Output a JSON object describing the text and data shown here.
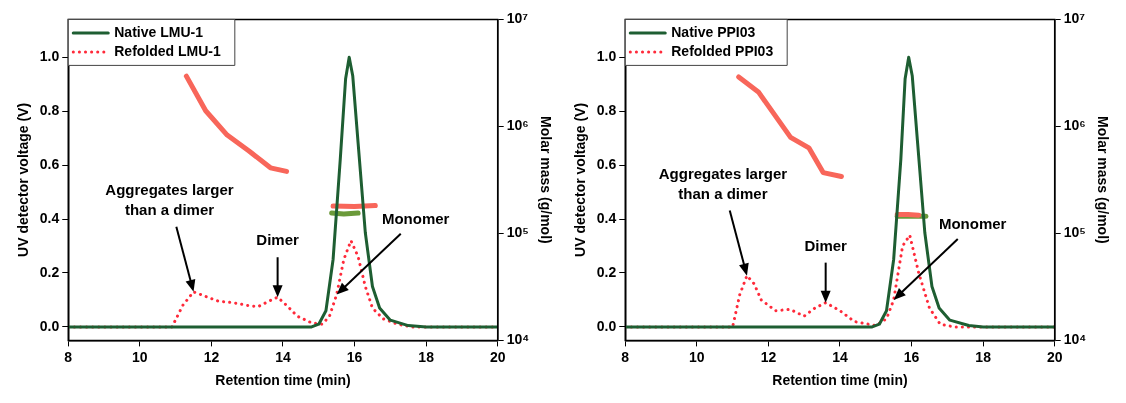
{
  "chart_data": [
    {
      "type": "line",
      "xlabel": "Retention time (min)",
      "ylabel": "UV detector voltage (V)",
      "y2label": "Molar mass (g/mol)",
      "xlim": [
        8,
        20
      ],
      "xticks": [
        8,
        10,
        12,
        14,
        16,
        18,
        20
      ],
      "ylim": [
        -0.05,
        1.14
      ],
      "yticks": [
        {
          "value": 0,
          "label": "0.0"
        },
        {
          "value": 0.2,
          "label": "0.2"
        },
        {
          "value": 0.4,
          "label": "0.4"
        },
        {
          "value": 0.6,
          "label": "0.6"
        },
        {
          "value": 0.8,
          "label": "0.8"
        },
        {
          "value": 1,
          "label": "1.0"
        }
      ],
      "y2lim": [
        10000,
        10000000
      ],
      "y2ticks": [
        {
          "value": 10000,
          "label": "10⁴"
        },
        {
          "value": 100000,
          "label": "10⁵"
        },
        {
          "value": 1000000,
          "label": "10⁶"
        },
        {
          "value": 10000000,
          "label": "10⁷"
        }
      ],
      "log": "y2",
      "legend": "top left",
      "marker": "none",
      "series": [
        {
          "name": "Native LMU-1",
          "color": "#1e5e32",
          "line_style": "solid",
          "x": [
            8,
            14.8,
            15.0,
            15.2,
            15.4,
            15.6,
            15.75,
            15.85,
            15.95,
            16.1,
            16.3,
            16.5,
            16.7,
            17.0,
            17.5,
            18,
            20
          ],
          "values": [
            0,
            0,
            0.01,
            0.06,
            0.25,
            0.62,
            0.92,
            1.0,
            0.93,
            0.68,
            0.35,
            0.15,
            0.07,
            0.025,
            0.005,
            0,
            0
          ]
        },
        {
          "name": "Refolded LMU-1",
          "color": "#ff2a3a",
          "line_style": "dotted",
          "x": [
            8,
            10.9,
            11.2,
            11.5,
            11.8,
            12.2,
            12.6,
            13.0,
            13.3,
            13.6,
            13.85,
            14.1,
            14.4,
            14.8,
            15.1,
            15.3,
            15.5,
            15.7,
            15.9,
            16.1,
            16.3,
            16.5,
            16.8,
            17.2,
            17.6,
            20
          ],
          "values": [
            0,
            0,
            0.08,
            0.13,
            0.115,
            0.095,
            0.09,
            0.08,
            0.075,
            0.095,
            0.11,
            0.08,
            0.04,
            0.015,
            0.01,
            0.04,
            0.12,
            0.25,
            0.32,
            0.26,
            0.15,
            0.07,
            0.03,
            0.01,
            0,
            0
          ]
        },
        {
          "color": "#f8665a",
          "axis": "y2",
          "line_style": "solid",
          "x": [
            11.3,
            11.84,
            12.44,
            13.05,
            13.65,
            14.1
          ],
          "values": [
            2950000,
            1400000,
            830000,
            590000,
            410000,
            380000
          ]
        },
        {
          "color": "#f8665a",
          "axis": "y2",
          "line_style": "solid",
          "x": [
            15.4,
            16.0,
            16.58
          ],
          "values": [
            180000,
            178000,
            182000
          ]
        },
        {
          "color": "#6b9a3a",
          "axis": "y2",
          "line_style": "solid",
          "x": [
            15.36,
            15.7,
            16.1
          ],
          "values": [
            155000,
            152000,
            155000
          ]
        }
      ],
      "annotations": [
        {
          "text": "Aggregates larger than a dimer",
          "x": 11.5,
          "y": 0.13
        },
        {
          "text": "Dimer",
          "x": 13.85,
          "y": 0.11
        },
        {
          "text": "Monomer",
          "x": 15.5,
          "y": 0.12
        }
      ]
    },
    {
      "type": "line",
      "xlabel": "Retention time (min)",
      "ylabel": "UV detector voltage (V)",
      "y2label": "Molar mass (g/mol)",
      "xlim": [
        8,
        20
      ],
      "xticks": [
        8,
        10,
        12,
        14,
        16,
        18,
        20
      ],
      "ylim": [
        -0.05,
        1.14
      ],
      "yticks": [
        {
          "value": 0,
          "label": "0.0"
        },
        {
          "value": 0.2,
          "label": "0.2"
        },
        {
          "value": 0.4,
          "label": "0.4"
        },
        {
          "value": 0.6,
          "label": "0.6"
        },
        {
          "value": 0.8,
          "label": "0.8"
        },
        {
          "value": 1,
          "label": "1.0"
        }
      ],
      "y2lim": [
        10000,
        10000000
      ],
      "y2ticks": [
        {
          "value": 10000,
          "label": "10⁴"
        },
        {
          "value": 100000,
          "label": "10⁵"
        },
        {
          "value": 1000000,
          "label": "10⁶"
        },
        {
          "value": 10000000,
          "label": "10⁷"
        }
      ],
      "log": "y2",
      "legend": "top left",
      "marker": "none",
      "series": [
        {
          "name": "Native PPI03",
          "color": "#1e5e32",
          "line_style": "solid",
          "x": [
            8,
            14.9,
            15.1,
            15.3,
            15.5,
            15.7,
            15.82,
            15.92,
            16.02,
            16.17,
            16.37,
            16.57,
            16.77,
            17.07,
            17.6,
            18,
            20
          ],
          "values": [
            0,
            0,
            0.01,
            0.06,
            0.25,
            0.62,
            0.92,
            1.0,
            0.93,
            0.68,
            0.35,
            0.15,
            0.07,
            0.025,
            0.005,
            0,
            0
          ]
        },
        {
          "name": "Refolded PPI03",
          "color": "#ff2a3a",
          "line_style": "dotted",
          "x": [
            8,
            11.0,
            11.2,
            11.4,
            11.6,
            11.8,
            12.2,
            12.6,
            13.0,
            13.3,
            13.6,
            14.0,
            14.4,
            15.0,
            15.3,
            15.5,
            15.75,
            15.95,
            16.2,
            16.5,
            16.8,
            17.2,
            20
          ],
          "values": [
            0,
            0,
            0.12,
            0.19,
            0.16,
            0.1,
            0.06,
            0.065,
            0.04,
            0.07,
            0.09,
            0.06,
            0.02,
            0.005,
            0.03,
            0.1,
            0.3,
            0.34,
            0.2,
            0.07,
            0.01,
            0,
            0
          ]
        },
        {
          "color": "#f8665a",
          "axis": "y2",
          "line_style": "solid",
          "x": [
            11.17,
            11.72,
            12.62,
            13.13,
            13.53,
            14.04
          ],
          "values": [
            2900000,
            2100000,
            790000,
            630000,
            370000,
            340000
          ]
        },
        {
          "color": "#f8665a",
          "axis": "y2",
          "line_style": "solid",
          "x": [
            15.6,
            15.9,
            16.2
          ],
          "values": [
            150000,
            150000,
            148000
          ]
        },
        {
          "color": "#6b9a3a",
          "axis": "y2",
          "line_style": "solid",
          "x": [
            15.6,
            16.0,
            16.4
          ],
          "values": [
            145000,
            145000,
            145000
          ]
        }
      ],
      "annotations": [
        {
          "text": "Aggregates larger than a dimer",
          "x": 11.4,
          "y": 0.19
        },
        {
          "text": "Dimer",
          "x": 13.6,
          "y": 0.09
        },
        {
          "text": "Monomer",
          "x": 15.5,
          "y": 0.1
        }
      ]
    }
  ]
}
